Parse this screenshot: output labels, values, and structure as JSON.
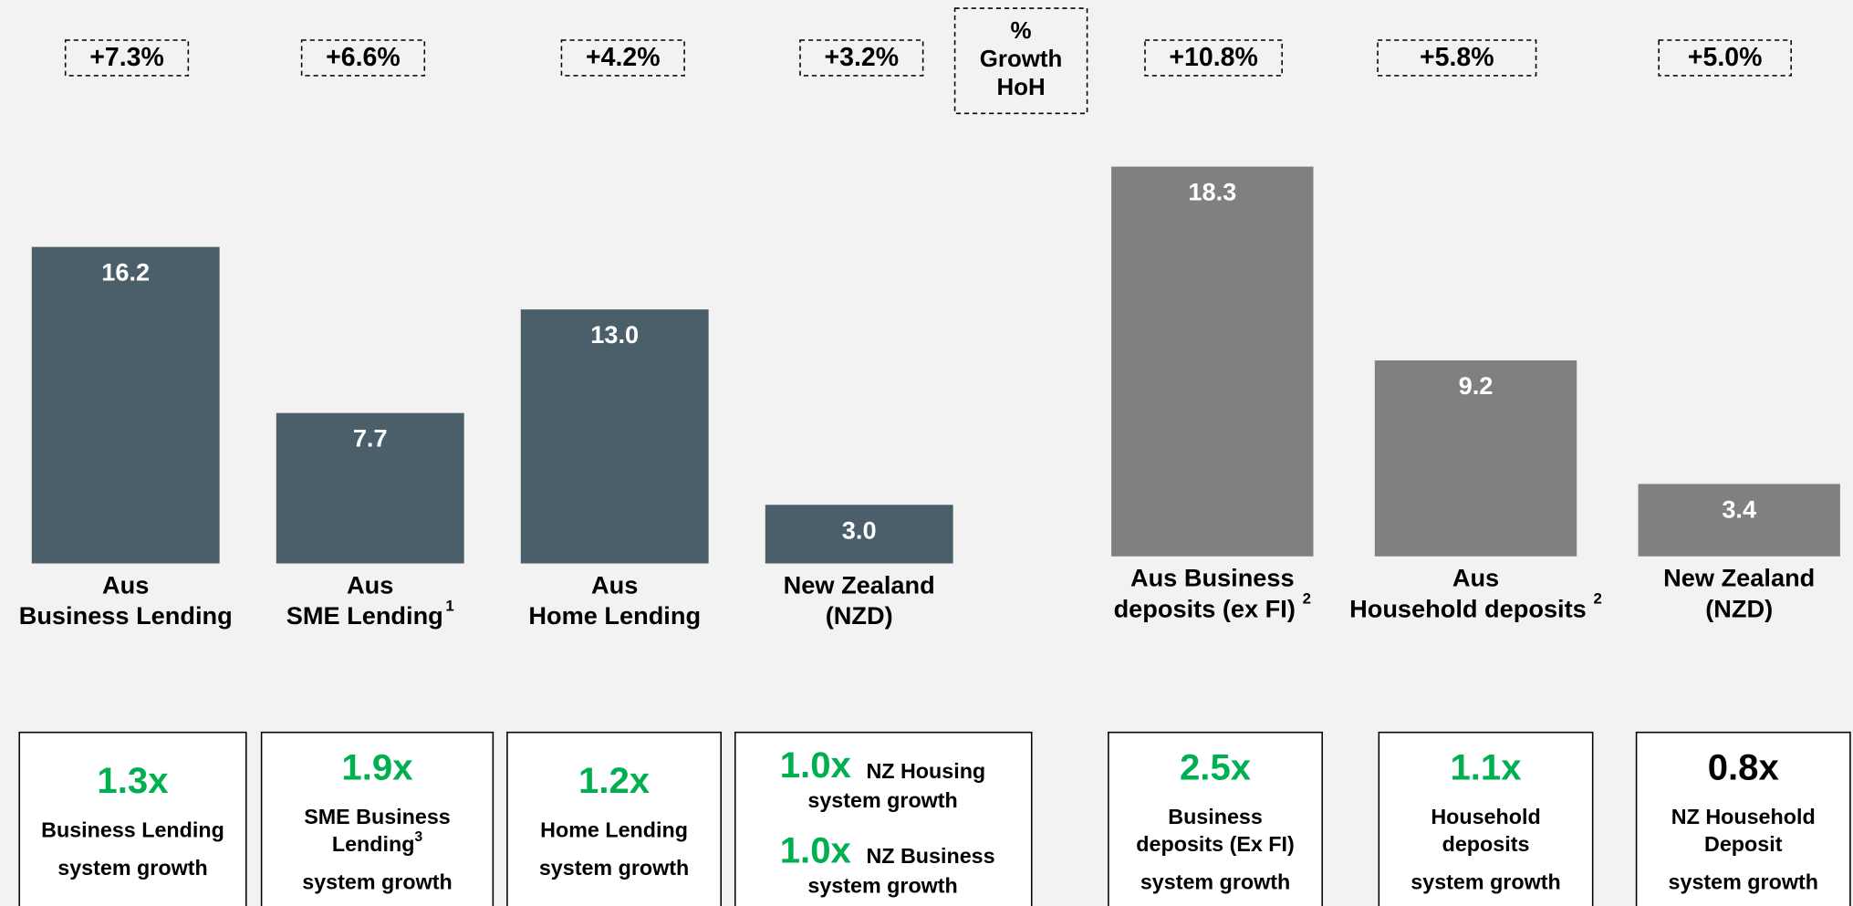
{
  "chart_data": [
    {
      "type": "bar",
      "color": "#4b5f6b",
      "categories": [
        [
          "Aus",
          "Business Lending"
        ],
        [
          "Aus",
          "SME Lending"
        ],
        [
          "Aus",
          "Home Lending"
        ],
        [
          "New Zealand",
          "(NZD)"
        ]
      ],
      "category_notes": [
        null,
        "1",
        null,
        null
      ],
      "values": [
        16.2,
        7.7,
        13.0,
        3.0
      ],
      "value_labels": [
        "16.2",
        "7.7",
        "13.0",
        "3.0"
      ],
      "growth_labels": [
        "+7.3%",
        "+6.6%",
        "+4.2%",
        "+3.2%"
      ]
    },
    {
      "type": "bar",
      "color": "#808080",
      "categories": [
        [
          "Aus Business",
          "deposits (ex FI)"
        ],
        [
          "Aus",
          "Household deposits"
        ],
        [
          "New Zealand",
          "(NZD)"
        ]
      ],
      "category_notes": [
        "2",
        "2",
        null
      ],
      "values": [
        18.3,
        9.2,
        3.4
      ],
      "value_labels": [
        "18.3",
        "9.2",
        "3.4"
      ],
      "growth_labels": [
        "+10.8%",
        "+5.8%",
        "+5.0%"
      ]
    }
  ],
  "growth_heading": [
    "%",
    "Growth",
    "HoH"
  ],
  "boxes": [
    {
      "color": "#00b050",
      "items": [
        {
          "multiple": "1.3x",
          "lines": [
            "Business Lending",
            "system growth"
          ]
        }
      ]
    },
    {
      "color": "#00b050",
      "note": "3",
      "items": [
        {
          "multiple": "1.9x",
          "lines": [
            "SME Business",
            "Lending",
            "system growth"
          ]
        }
      ]
    },
    {
      "color": "#00b050",
      "items": [
        {
          "multiple": "1.2x",
          "lines": [
            "Home Lending",
            "system growth"
          ]
        }
      ]
    },
    {
      "color": "#00b050",
      "items": [
        {
          "multiple": "1.0x",
          "lines": [
            "NZ Housing",
            "system growth"
          ]
        },
        {
          "multiple": "1.0x",
          "lines": [
            "NZ Business",
            "system growth"
          ]
        }
      ]
    },
    {
      "color": "#00b050",
      "items": [
        {
          "multiple": "2.5x",
          "lines": [
            "Business",
            "deposits (Ex FI)",
            "system growth"
          ]
        }
      ]
    },
    {
      "color": "#00b050",
      "items": [
        {
          "multiple": "1.1x",
          "lines": [
            "Household",
            "deposits",
            "system growth"
          ]
        }
      ]
    },
    {
      "color": "#000000",
      "items": [
        {
          "multiple": "0.8x",
          "lines": [
            "NZ Household",
            "Deposit",
            "system growth"
          ]
        }
      ]
    }
  ]
}
